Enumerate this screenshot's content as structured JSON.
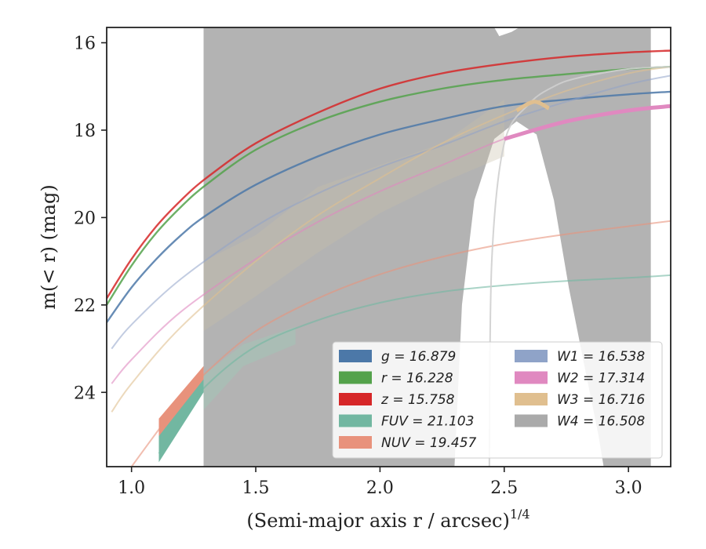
{
  "chart_data": {
    "type": "line",
    "xlabel_main": "(Semi-major axis r / arcsec)",
    "xlabel_sup": "1/4",
    "ylabel": "m(< r) (mag)",
    "xlim": [
      0.9,
      3.17
    ],
    "ylim": [
      25.7,
      15.65
    ],
    "x_ticks": [
      "1.0",
      "1.5",
      "2.0",
      "2.5",
      "3.0"
    ],
    "x_tick_values": [
      1.0,
      1.5,
      2.0,
      2.5,
      3.0
    ],
    "y_ticks": [
      "16",
      "18",
      "20",
      "22",
      "24"
    ],
    "y_tick_values": [
      16,
      18,
      20,
      22,
      24
    ],
    "w4_band_xrange": [
      1.29,
      3.09
    ],
    "series": [
      {
        "name": "g",
        "value": "16.879",
        "color": "#4c78a8",
        "x": [
          0.9,
          1.0,
          1.1,
          1.2,
          1.3,
          1.5,
          1.75,
          2.0,
          2.25,
          2.5,
          2.75,
          3.0,
          3.17
        ],
        "y": [
          22.4,
          21.6,
          20.95,
          20.4,
          19.95,
          19.25,
          18.6,
          18.1,
          17.75,
          17.45,
          17.3,
          17.18,
          17.12
        ]
      },
      {
        "name": "r",
        "value": "16.228",
        "color": "#54a24b",
        "x": [
          0.9,
          1.0,
          1.1,
          1.2,
          1.3,
          1.5,
          1.75,
          2.0,
          2.25,
          2.5,
          2.75,
          3.0,
          3.17
        ],
        "y": [
          22.0,
          21.1,
          20.35,
          19.75,
          19.25,
          18.45,
          17.8,
          17.35,
          17.05,
          16.85,
          16.72,
          16.6,
          16.55
        ]
      },
      {
        "name": "z",
        "value": "15.758",
        "color": "#d62728",
        "x": [
          0.9,
          1.0,
          1.1,
          1.2,
          1.3,
          1.5,
          1.75,
          2.0,
          2.25,
          2.5,
          2.75,
          3.0,
          3.17
        ],
        "y": [
          21.85,
          20.95,
          20.2,
          19.6,
          19.1,
          18.3,
          17.6,
          17.05,
          16.7,
          16.48,
          16.32,
          16.22,
          16.18
        ]
      },
      {
        "name": "FUV",
        "value": "21.103",
        "color": "#72b7a1",
        "x": [
          1.11,
          1.2,
          1.3,
          1.5,
          1.75,
          2.0,
          2.25,
          2.5,
          2.75,
          3.0,
          3.17
        ],
        "y": [
          25.4,
          24.6,
          23.85,
          22.95,
          22.35,
          21.95,
          21.7,
          21.55,
          21.45,
          21.38,
          21.32
        ]
      },
      {
        "name": "NUV",
        "value": "19.457",
        "color": "#e8927c",
        "x": [
          1.0,
          1.11,
          1.2,
          1.3,
          1.5,
          1.75,
          2.0,
          2.25,
          2.5,
          2.75,
          3.0,
          3.17
        ],
        "y": [
          25.7,
          24.85,
          24.2,
          23.55,
          22.6,
          21.85,
          21.3,
          20.9,
          20.6,
          20.38,
          20.2,
          20.08
        ]
      },
      {
        "name": "W1",
        "value": "16.538",
        "color": "#8fa3c8",
        "x": [
          0.92,
          1.0,
          1.2,
          1.5,
          1.75,
          2.0,
          2.25,
          2.5,
          2.75,
          3.0,
          3.17
        ],
        "y": [
          23.0,
          22.45,
          21.4,
          20.2,
          19.45,
          18.85,
          18.35,
          17.8,
          17.35,
          16.95,
          16.75
        ]
      },
      {
        "name": "W2",
        "value": "17.314",
        "color": "#e089c0",
        "x": [
          0.92,
          1.0,
          1.2,
          1.5,
          1.75,
          2.0,
          2.25,
          2.5,
          2.75,
          3.0,
          3.17
        ],
        "y": [
          23.8,
          23.25,
          22.15,
          20.95,
          20.1,
          19.4,
          18.8,
          18.2,
          17.8,
          17.55,
          17.45
        ]
      },
      {
        "name": "W3",
        "value": "16.716",
        "color": "#e0bf8f",
        "x": [
          0.92,
          1.0,
          1.2,
          1.5,
          1.75,
          2.0,
          2.25,
          2.5,
          2.75,
          3.0,
          3.17
        ],
        "y": [
          24.45,
          23.8,
          22.5,
          21.0,
          19.95,
          19.1,
          18.3,
          17.65,
          17.1,
          16.7,
          16.55
        ]
      },
      {
        "name": "W4",
        "value": "16.508",
        "color": "#aaaaaa",
        "x": [
          2.44,
          2.45,
          2.5,
          2.6,
          2.7,
          2.8,
          3.0,
          3.17
        ],
        "y": [
          25.7,
          21.0,
          18.3,
          17.4,
          17.0,
          16.8,
          16.6,
          16.55
        ]
      }
    ],
    "legend": {
      "position": "lower-right",
      "columns": [
        [
          {
            "label": "g = 16.879",
            "color": "#4c78a8"
          },
          {
            "label": "r = 16.228",
            "color": "#54a24b"
          },
          {
            "label": "z = 15.758",
            "color": "#d62728"
          },
          {
            "label": "FUV = 21.103",
            "color": "#72b7a1"
          },
          {
            "label": "NUV = 19.457",
            "color": "#e8927c"
          }
        ],
        [
          {
            "label": "W1 = 16.538",
            "color": "#8fa3c8"
          },
          {
            "label": "W2 = 17.314",
            "color": "#e089c0"
          },
          {
            "label": "W3 = 16.716",
            "color": "#e0bf8f"
          },
          {
            "label": "W4 = 16.508",
            "color": "#aaaaaa"
          }
        ]
      ]
    },
    "grid": false
  }
}
